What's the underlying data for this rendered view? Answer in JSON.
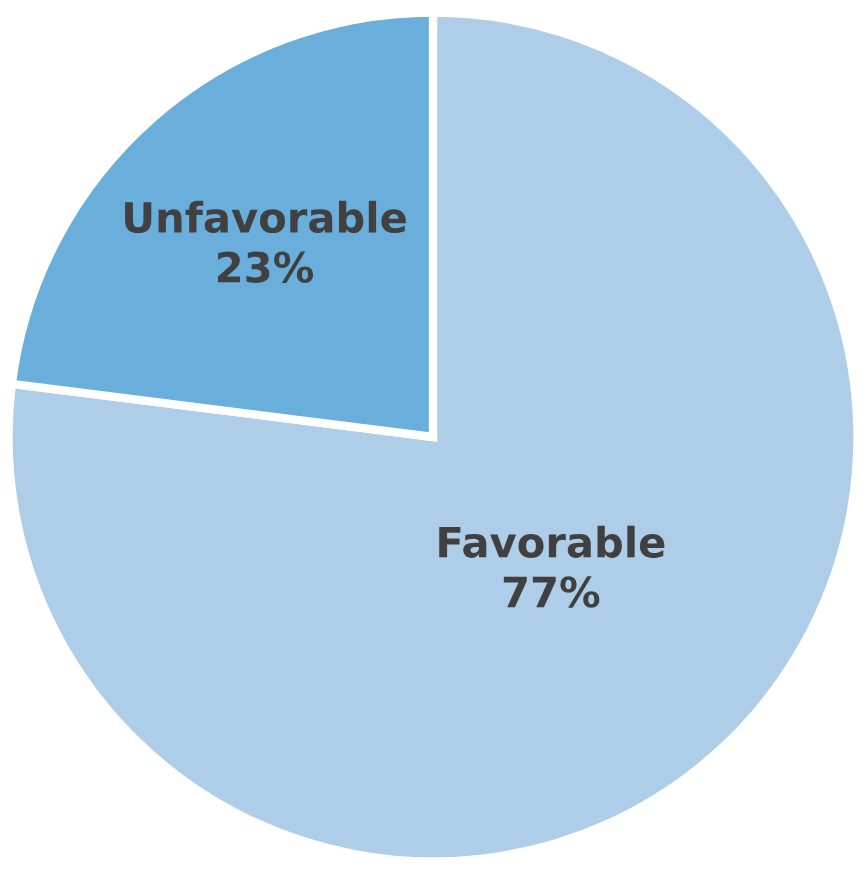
{
  "chart_data": {
    "type": "pie",
    "categories": [
      "Favorable",
      "Unfavorable"
    ],
    "values": [
      77,
      23
    ],
    "colors": [
      "#aecde8",
      "#6aaedc"
    ],
    "value_labels": [
      "77%",
      "23%"
    ]
  }
}
